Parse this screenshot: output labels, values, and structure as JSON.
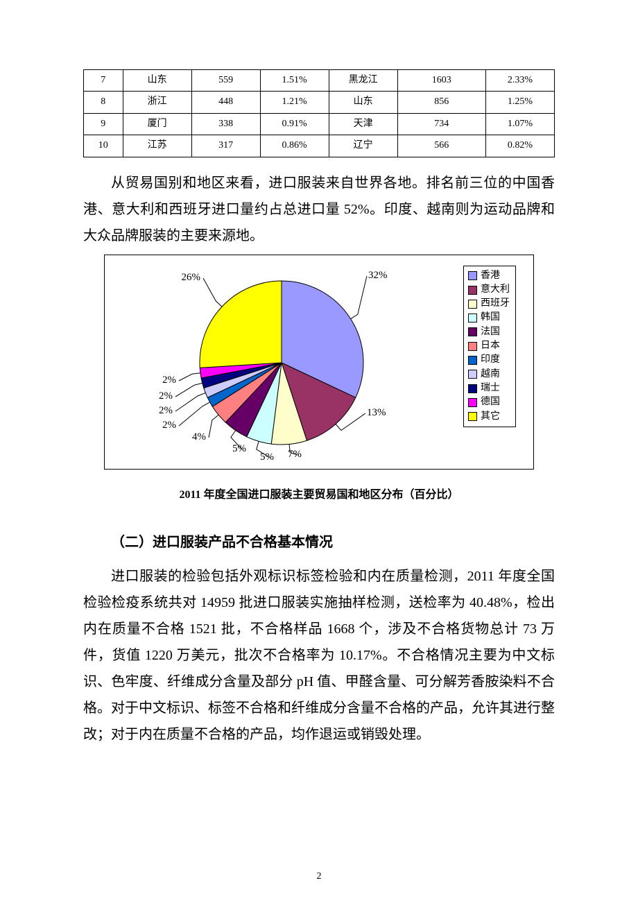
{
  "table": {
    "col_widths_pct": [
      8,
      14,
      14,
      14,
      14,
      18,
      14
    ],
    "rows": [
      [
        "7",
        "山东",
        "559",
        "1.51%",
        "黑龙江",
        "1603",
        "2.33%"
      ],
      [
        "8",
        "浙江",
        "448",
        "1.21%",
        "山东",
        "856",
        "1.25%"
      ],
      [
        "9",
        "厦门",
        "338",
        "0.91%",
        "天津",
        "734",
        "1.07%"
      ],
      [
        "10",
        "江苏",
        "317",
        "0.86%",
        "辽宁",
        "566",
        "0.82%"
      ]
    ]
  },
  "para1": "从贸易国别和地区来看，进口服装来自世界各地。排名前三位的中国香港、意大利和西班牙进口量约占总进口量 52%。印度、越南则为运动品牌和大众品牌服装的主要来源地。",
  "pie": {
    "type": "pie",
    "background_color": "#ffffff",
    "border_color": "#000000",
    "slice_border": "#000000",
    "start_angle_deg": -90,
    "slices": [
      {
        "name": "香港",
        "value": 32,
        "label": "32%",
        "color": "#9999ff"
      },
      {
        "name": "意大利",
        "value": 13,
        "label": "13%",
        "color": "#993366"
      },
      {
        "name": "西班牙",
        "value": 7,
        "label": "7%",
        "color": "#ffffcc"
      },
      {
        "name": "韩国",
        "value": 5,
        "label": "5%",
        "color": "#ccffff"
      },
      {
        "name": "法国",
        "value": 5,
        "label": "5%",
        "color": "#660066"
      },
      {
        "name": "日本",
        "value": 4,
        "label": "4%",
        "color": "#ff8080"
      },
      {
        "name": "印度",
        "value": 2,
        "label": "2%",
        "color": "#0066cc"
      },
      {
        "name": "越南",
        "value": 2,
        "label": "2%",
        "color": "#ccccff"
      },
      {
        "name": "瑞士",
        "value": 2,
        "label": "2%",
        "color": "#000080"
      },
      {
        "name": "德国",
        "value": 2,
        "label": "2%",
        "color": "#ff00ff"
      },
      {
        "name": "其它",
        "value": 26,
        "label": "26%",
        "color": "#ffff00"
      }
    ],
    "label_fontsize": 15,
    "legend_fontsize": 14,
    "legend_border": "#000000"
  },
  "chart_caption": "2011 年度全国进口服装主要贸易国和地区分布（百分比）",
  "section_heading": "（二）进口服装产品不合格基本情况",
  "para2": "进口服装的检验包括外观标识标签检验和内在质量检测，2011 年度全国检验检疫系统共对 14959 批进口服装实施抽样检测，送检率为 40.48%，检出内在质量不合格 1521 批，不合格样品 1668 个，涉及不合格货物总计 73 万件，货值 1220 万美元，批次不合格率为 10.17%。不合格情况主要为中文标识、色牢度、纤维成分含量及部分 pH 值、甲醛含量、可分解芳香胺染料不合格。对于中文标识、标签不合格和纤维成分含量不合格的产品，允许其进行整改；对于内在质量不合格的产品，均作退运或销毁处理。",
  "page_number": "2"
}
